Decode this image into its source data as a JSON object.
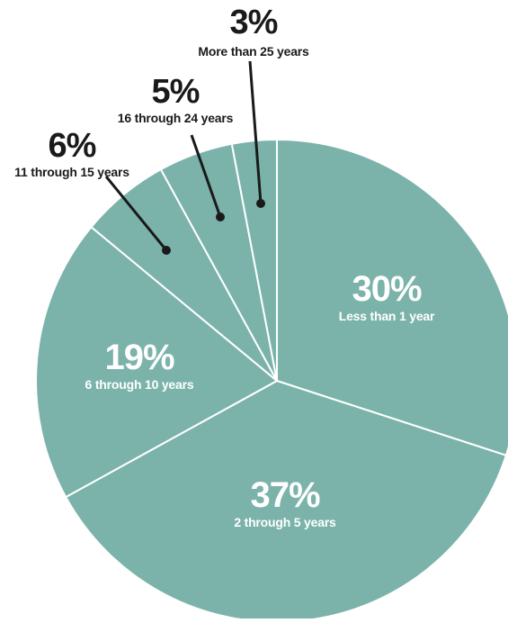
{
  "colors": {
    "slice": "#7bb3ab",
    "inside_text": "#ffffff",
    "outside_text": "#1a1a1a",
    "divider": "#ffffff"
  },
  "chart_data": {
    "type": "pie",
    "title": "",
    "categories": [
      "Less than 1 year",
      "2 through 5 years",
      "6 through 10 years",
      "11 through 15 years",
      "16 through 24 years",
      "More than 25 years"
    ],
    "values": [
      30,
      37,
      19,
      6,
      5,
      3
    ],
    "value_labels": [
      "30%",
      "37%",
      "19%",
      "6%",
      "5%",
      "3%"
    ],
    "start": "12 o'clock",
    "direction": "clockwise",
    "label_placement": [
      "inside",
      "inside",
      "inside",
      "outside",
      "outside",
      "outside"
    ]
  }
}
